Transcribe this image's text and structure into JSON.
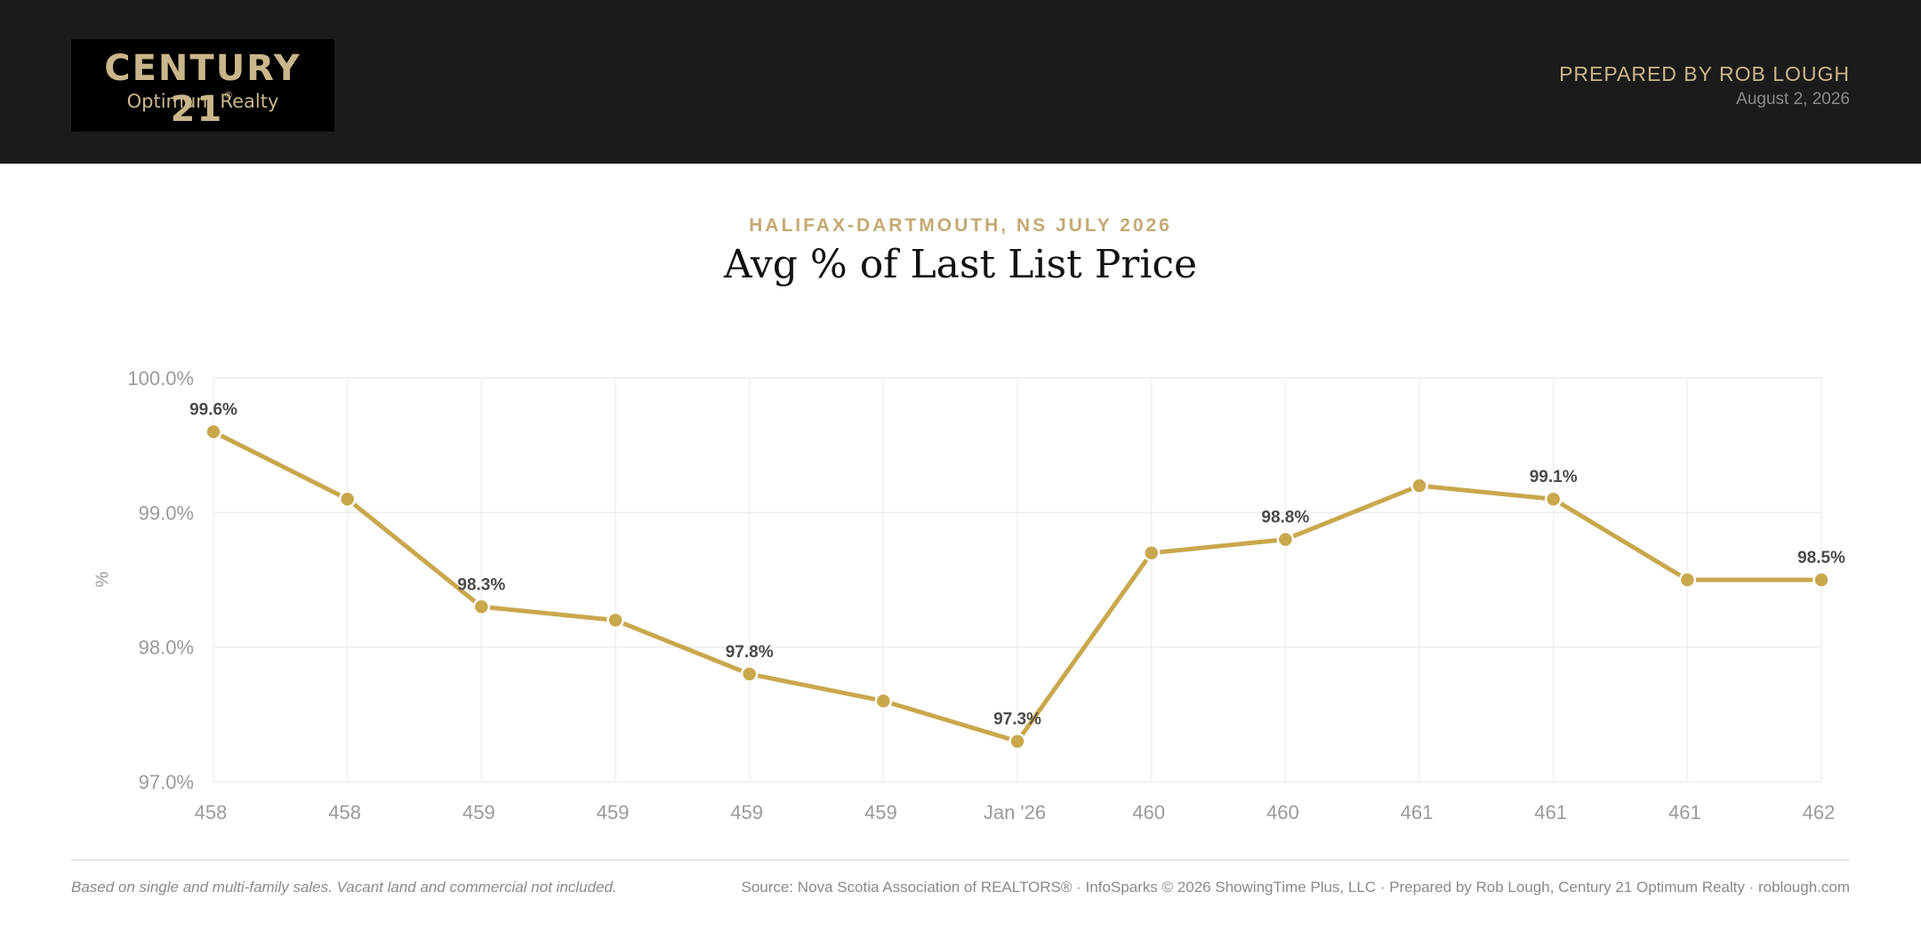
{
  "header": {
    "logo_main": "CENTURY 21",
    "logo_reg": "®",
    "logo_sub": "Optimum Realty",
    "prepared_by": "PREPARED BY ROB LOUGH",
    "date": "August 2, 2026"
  },
  "chart_data": {
    "type": "line",
    "subtitle": "HALIFAX-DARTMOUTH, NS JULY 2026",
    "title": "Avg % of Last List Price",
    "ylabel": "%",
    "categories": [
      "458",
      "458",
      "459",
      "459",
      "459",
      "459",
      "Jan '26",
      "460",
      "460",
      "461",
      "461",
      "461",
      "462"
    ],
    "values": [
      99.6,
      99.1,
      98.3,
      98.2,
      97.8,
      97.6,
      97.3,
      98.7,
      98.8,
      99.2,
      99.1,
      98.5,
      98.5
    ],
    "data_labels": [
      "99.6%",
      "",
      "98.3%",
      "",
      "97.8%",
      "",
      "97.3%",
      "",
      "98.8%",
      "",
      "99.1%",
      "",
      "98.5%"
    ],
    "yticks": [
      "97.0%",
      "98.0%",
      "99.0%",
      "100.0%"
    ],
    "ylim": [
      97.0,
      100.0
    ],
    "grid": true,
    "color": "#c9a74d"
  },
  "footer": {
    "note": "Based on single and multi-family sales. Vacant land and commercial not included.",
    "source": "Source: Nova Scotia Association of REALTORS® · InfoSparks © 2026 ShowingTime Plus, LLC · Prepared by Rob Lough, Century 21 Optimum Realty · roblough.com"
  }
}
